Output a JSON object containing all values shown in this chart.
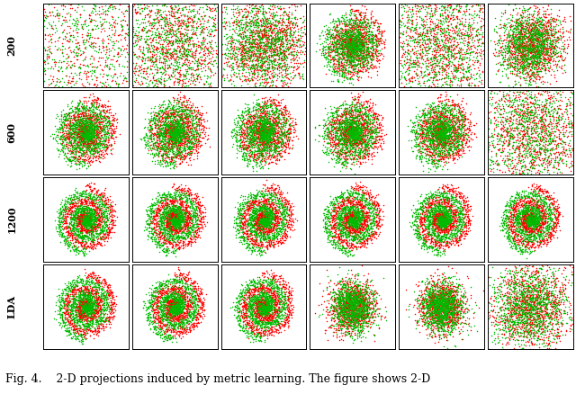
{
  "rows": 4,
  "cols": 6,
  "row_labels": [
    "200",
    "600",
    "1200",
    "LDA"
  ],
  "caption": "Fig. 4.    2-D projections induced by metric learning. The figure shows 2-D",
  "caption_fontsize": 9,
  "bg_color": "#ffffff",
  "red_color": "#ff0000",
  "green_color": "#00bb00",
  "marker_size": 1.2,
  "noise_levels": [
    [
      1.8,
      1.0,
      0.6,
      0.15,
      1.0,
      0.3
    ],
    [
      0.12,
      0.12,
      0.12,
      0.12,
      0.12,
      0.9
    ],
    [
      0.08,
      0.08,
      0.08,
      0.08,
      0.08,
      0.08
    ],
    [
      0.08,
      0.08,
      0.08,
      -1.0,
      -1.0,
      0.5
    ]
  ],
  "n_points": 1200,
  "seed": 7
}
